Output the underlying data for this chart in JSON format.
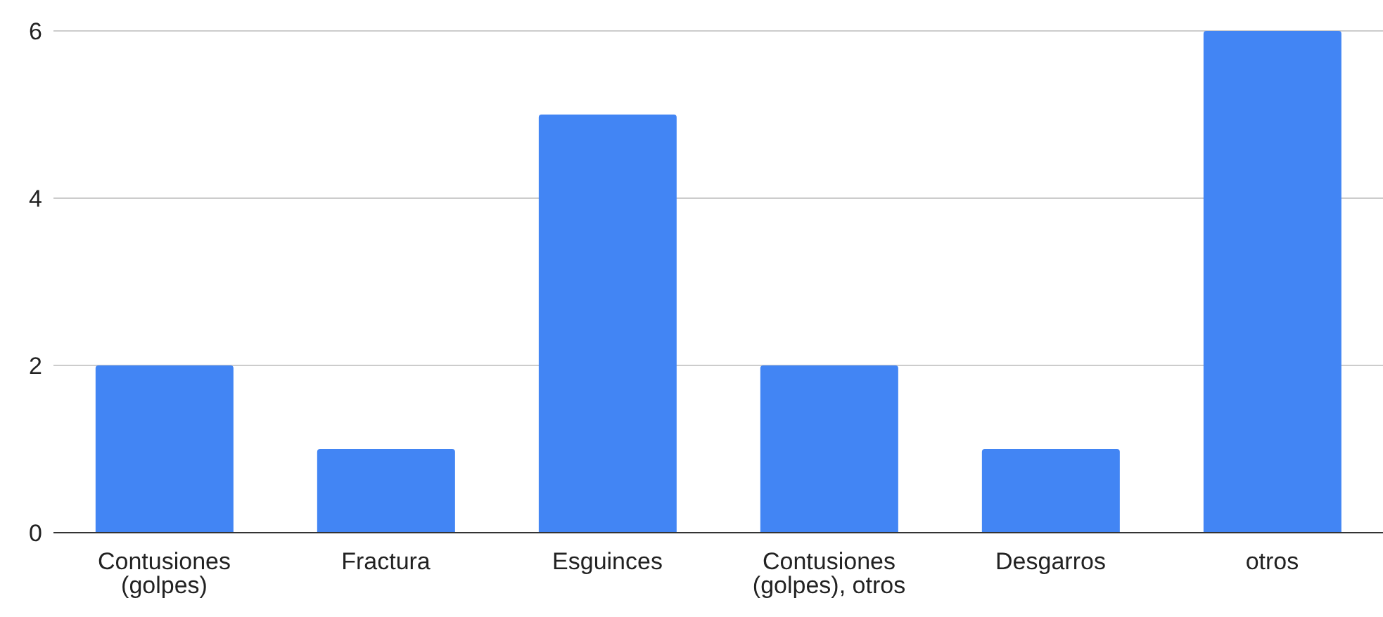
{
  "chart_data": {
    "type": "bar",
    "categories": [
      "Contusiones (golpes)",
      "Fractura",
      "Esguinces",
      "Contusiones (golpes), otros",
      "Desgarros",
      "otros"
    ],
    "values": [
      2,
      1,
      5,
      2,
      1,
      6
    ],
    "color": "#4285f4",
    "ylim": [
      0,
      6
    ],
    "yticks": [
      0,
      2,
      4,
      6
    ],
    "grid": "y"
  }
}
